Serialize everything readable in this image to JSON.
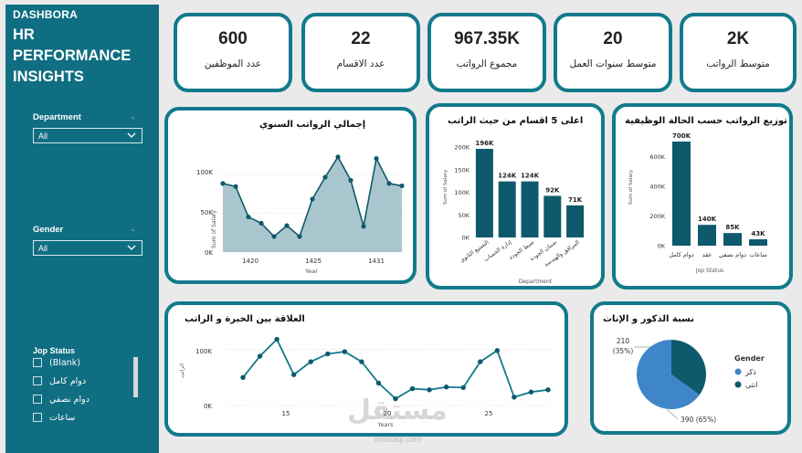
{
  "sidebar": {
    "brand": "DASHBORA",
    "title_lines": [
      "HR",
      "PERFORMANCE",
      "INSIGHTS"
    ],
    "filters": [
      {
        "label": "Department",
        "value": "All"
      },
      {
        "label": "Gender",
        "value": "All"
      }
    ],
    "jop_status": {
      "label": "Jop Status",
      "items": [
        "(Blank)",
        "دوام كامل",
        "دوام نصفي",
        "ساعات"
      ]
    }
  },
  "kpis": [
    {
      "value": "600",
      "label": "عدد الموظفين"
    },
    {
      "value": "22",
      "label": "عدد الاقسام"
    },
    {
      "value": "967.35K",
      "label": "مجموع الرواتب"
    },
    {
      "value": "20",
      "label": "متوسط سنوات العمل"
    },
    {
      "value": "2K",
      "label": "متوسط الرواتب"
    }
  ],
  "colors": {
    "accent": "#127a8c",
    "dark": "#0e5a6c",
    "area_fill": "#a9c6cf",
    "pie_light": "#3f86c8",
    "pie_dark": "#0e5a6c"
  },
  "chart_data": [
    {
      "type": "area",
      "title": "إجمالي الرواتب السنوي",
      "xlabel": "Year",
      "ylabel": "Sum of Salary",
      "x": [
        1418,
        1419,
        1420,
        1421,
        1422,
        1423,
        1424,
        1425,
        1426,
        1427,
        1428,
        1429,
        1430,
        1431,
        1432
      ],
      "values": [
        88000,
        84000,
        45000,
        37000,
        20000,
        34000,
        20000,
        68000,
        96000,
        122000,
        92000,
        33000,
        120000,
        88000,
        85000
      ],
      "x_ticks": [
        "1420",
        "1425",
        "1431"
      ],
      "y_ticks": [
        "0K",
        "50K",
        "100K"
      ],
      "ylim": [
        0,
        130000
      ]
    },
    {
      "type": "bar",
      "title": "اعلى 5 اقسام من حيث الراتب",
      "xlabel": "Department",
      "ylabel": "Sum of Salary",
      "categories": [
        "التصنيع الثانوي",
        "إدارة الحساب",
        "ضبط الجودة",
        "ضمان الجودة",
        "المرافق والهندسة"
      ],
      "values": [
        196000,
        124000,
        124000,
        92000,
        71000
      ],
      "data_labels": [
        "196K",
        "124K",
        "124K",
        "92K",
        "71K"
      ],
      "y_ticks": [
        "0K",
        "50K",
        "100K",
        "150K",
        "200K"
      ],
      "ylim": [
        0,
        200000
      ]
    },
    {
      "type": "bar",
      "title": "توزيع الرواتب حسب الحالة الوظيفية",
      "xlabel": "Jop Status",
      "ylabel": "Sum of Salary",
      "categories": [
        "دوام كامل",
        "عقد",
        "دوام نصفي",
        "ساعات"
      ],
      "values": [
        700000,
        140000,
        85000,
        43000
      ],
      "data_labels": [
        "700K",
        "140K",
        "85K",
        "43K"
      ],
      "y_ticks": [
        "0K",
        "200K",
        "400K",
        "600K"
      ],
      "ylim": [
        0,
        700000
      ]
    },
    {
      "type": "line",
      "title": "العلاقة بين الخبرة و الراتب",
      "xlabel": "Years",
      "ylabel": "الراتب",
      "x": [
        10,
        11,
        12,
        13,
        14,
        15,
        16,
        17,
        18,
        19,
        20,
        21,
        22,
        23,
        24,
        25,
        26,
        27,
        28
      ],
      "values": [
        50000,
        88000,
        118000,
        55000,
        78000,
        92000,
        96000,
        78000,
        40000,
        12000,
        30000,
        28000,
        33000,
        32000,
        78000,
        98000,
        15000,
        24000,
        28000
      ],
      "x_ticks": [
        "15",
        "20",
        "25"
      ],
      "y_ticks": [
        "0K",
        "100K"
      ],
      "ylim": [
        0,
        140000
      ]
    },
    {
      "type": "pie",
      "title": "نسبة الذكور و الإناث",
      "legend_title": "Gender",
      "slices": [
        {
          "name": "ذكر",
          "value": 390,
          "label": "390 (65%)"
        },
        {
          "name": "انثى",
          "value": 210,
          "label": "210 (35%)"
        }
      ]
    }
  ],
  "watermark": {
    "text": "مستقل",
    "sub": "mostaql.com"
  }
}
